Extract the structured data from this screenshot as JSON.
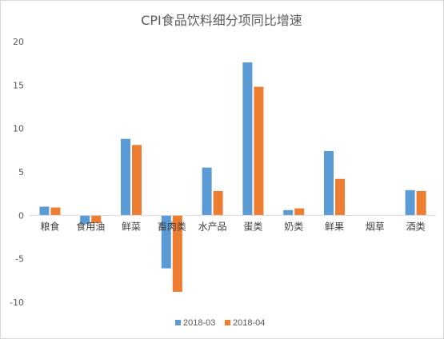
{
  "chart_data": {
    "type": "bar",
    "title": "CPI食品饮料细分项同比增速",
    "categories": [
      "粮食",
      "食用油",
      "鲜菜",
      "畜肉类",
      "水产品",
      "蛋类",
      "奶类",
      "鲜果",
      "烟草",
      "酒类"
    ],
    "series": [
      {
        "name": "2018-03",
        "color": "#5B9BD5",
        "values": [
          1.0,
          -1.0,
          8.8,
          -6.1,
          5.5,
          17.6,
          0.6,
          7.4,
          0.0,
          2.9
        ]
      },
      {
        "name": "2018-04",
        "color": "#ED7D31",
        "values": [
          0.9,
          -0.9,
          8.1,
          -8.8,
          2.8,
          14.8,
          0.8,
          4.2,
          0.0,
          2.8
        ]
      }
    ],
    "ylim": [
      -10,
      20
    ],
    "yticks": [
      20,
      15,
      10,
      5,
      0,
      -5,
      -10
    ],
    "gridlines": false,
    "legend_position": "bottom"
  }
}
